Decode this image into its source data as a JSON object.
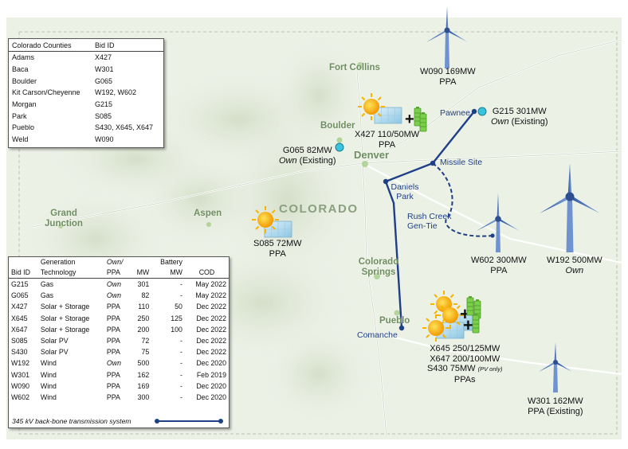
{
  "map": {
    "state_label": "COLORADO",
    "cities": [
      "Fort Collins",
      "Boulder",
      "Denver",
      "Aspen",
      "Grand Junction",
      "Colorado Springs",
      "Pueblo"
    ],
    "substations": [
      "Pawnee",
      "Missile Site",
      "Daniels Park",
      "Comanche"
    ],
    "gen_tie": "Rush Creek Gen-Tie",
    "colors": {
      "transmission": "#1f3f86",
      "wind": "#3f67a8",
      "solar": "#f5a300",
      "battery": "#6cbf3f",
      "gas": "#39c3dc"
    }
  },
  "labels": {
    "w090": {
      "line1": "W090 169MW",
      "line2": "PPA"
    },
    "g215": {
      "line1": "G215 301MW",
      "line2_em": "Own",
      "line2_rest": " (Existing)"
    },
    "x427": {
      "line1": "X427 110/50MW",
      "line2": "PPA"
    },
    "g065": {
      "line1": "G065 82MW",
      "line2_em": "Own",
      "line2_rest": " (Existing)"
    },
    "s085": {
      "line1": "S085 72MW",
      "line2": "PPA"
    },
    "w602": {
      "line1": "W602 300MW",
      "line2": "PPA"
    },
    "w192": {
      "line1": "W192 500MW",
      "line2": "Own"
    },
    "pueblo_group": {
      "line1": "X645 250/125MW",
      "line2": "X647 200/100MW",
      "line3": "S430  75MW",
      "line3_note": "(PV only)",
      "line4": "PPAs"
    },
    "w301": {
      "line1": "W301 162MW",
      "line2": "PPA (Existing)"
    }
  },
  "county_table": {
    "headers": [
      "Colorado Counties",
      "Bid ID"
    ],
    "rows": [
      [
        "Adams",
        "X427"
      ],
      [
        "Baca",
        "W301"
      ],
      [
        "Boulder",
        "G065"
      ],
      [
        "Kit Carson/Cheyenne",
        "W192, W602"
      ],
      [
        "Morgan",
        "G215"
      ],
      [
        "Park",
        "S085"
      ],
      [
        "Pueblo",
        "S430, X645, X647"
      ],
      [
        "Weld",
        "W090"
      ]
    ]
  },
  "bid_table": {
    "header_top": [
      "",
      "Generation",
      "Own/",
      "",
      "Battery",
      ""
    ],
    "header_bottom": [
      "Bid ID",
      "Technology",
      "PPA",
      "MW",
      "MW",
      "COD"
    ],
    "rows": [
      [
        "G215",
        "Gas",
        "Own",
        "301",
        "-",
        "May 2022"
      ],
      [
        "G065",
        "Gas",
        "Own",
        "82",
        "-",
        "May 2022"
      ],
      [
        "X427",
        "Solar + Storage",
        "PPA",
        "110",
        "50",
        "Dec 2022"
      ],
      [
        "X645",
        "Solar + Storage",
        "PPA",
        "250",
        "125",
        "Dec 2022"
      ],
      [
        "X647",
        "Solar + Storage",
        "PPA",
        "200",
        "100",
        "Dec 2022"
      ],
      [
        "S085",
        "Solar PV",
        "PPA",
        "72",
        "-",
        "Dec 2022"
      ],
      [
        "S430",
        "Solar PV",
        "PPA",
        "75",
        "-",
        "Dec 2022"
      ],
      [
        "W192",
        "Wind",
        "Own",
        "500",
        "-",
        "Dec 2020"
      ],
      [
        "W301",
        "Wind",
        "PPA",
        "162",
        "-",
        "Feb 2019"
      ],
      [
        "W090",
        "Wind",
        "PPA",
        "169",
        "-",
        "Dec 2020"
      ],
      [
        "W602",
        "Wind",
        "PPA",
        "300",
        "-",
        "Dec 2020"
      ]
    ],
    "footnote": "345 kV back-bone transmission system"
  }
}
